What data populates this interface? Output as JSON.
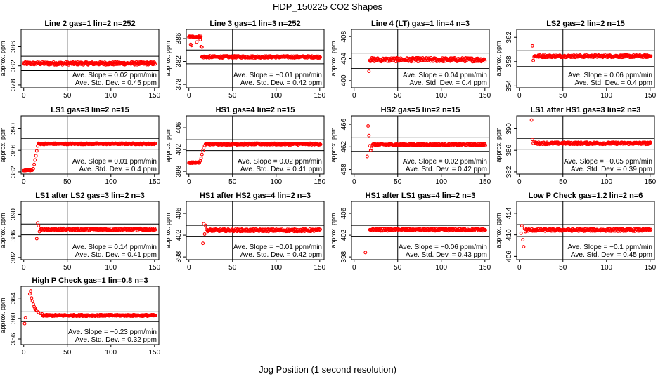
{
  "figure": {
    "title": "HDP_150225  CO2 Shapes",
    "xlabel": "Jog Position (1 second resolution)"
  },
  "chart_data": [
    {
      "type": "scatter",
      "title": "Line 2 gas=1 lin=2 n=252",
      "ylabel": "approx. ppm",
      "xlim": [
        -3,
        155
      ],
      "ylim": [
        377.4,
        389.6
      ],
      "xticks": [
        0,
        50,
        100,
        150
      ],
      "yticks": [
        378,
        382,
        386
      ],
      "hlines": [
        384,
        381
      ],
      "vline": 50,
      "color": "#ff0000",
      "annotation": [
        "Ave. Slope =  0.02  ppm/min",
        "Ave. Std. Dev. =  0.45  ppm"
      ],
      "series": [
        {
          "shape": "flat",
          "x_start": 0,
          "x_end": 151,
          "level": 382.5,
          "noise": 0.3
        }
      ]
    },
    {
      "type": "scatter",
      "title": "Line 3 gas=1 lin=3 n=252",
      "ylabel": "approx. ppm",
      "xlim": [
        -3,
        155
      ],
      "ylim": [
        377.4,
        387.6
      ],
      "xticks": [
        0,
        50,
        100,
        150
      ],
      "yticks": [
        378,
        382,
        386
      ],
      "hlines": [
        384,
        381.6
      ],
      "vline": 50,
      "color": "#ff0000",
      "annotation": [
        "Ave. Slope =  −0.01  ppm/min",
        "Ave. Std. Dev. =  0.42  ppm"
      ],
      "series": [
        {
          "shape": "flat",
          "x_start": 0,
          "x_end": 14,
          "level": 386.3,
          "noise": 0.15
        },
        {
          "points": [
            [
              2,
              385
            ],
            [
              3,
              384.8
            ],
            [
              9,
              385.4
            ],
            [
              13,
              385.8
            ],
            [
              14,
              384.6
            ],
            [
              15,
              384.5
            ]
          ]
        },
        {
          "shape": "flat",
          "x_start": 15,
          "x_end": 151,
          "level": 382.8,
          "noise": 0.18
        }
      ]
    },
    {
      "type": "scatter",
      "title": "Line 4 (LT) gas=1 lin=4 n=3",
      "ylabel": "approx. ppm",
      "xlim": [
        -3,
        155
      ],
      "ylim": [
        398.7,
        409.3
      ],
      "xticks": [
        0,
        50,
        100,
        150
      ],
      "yticks": [
        400,
        404,
        408
      ],
      "hlines": [
        405,
        402.2
      ],
      "vline": 50,
      "color": "#ff0000",
      "annotation": [
        "Ave. Slope =  0.04  ppm/min",
        "Ave. Std. Dev. =  0.4  ppm"
      ],
      "series": [
        {
          "points": [
            [
              17,
              401.7
            ]
          ]
        },
        {
          "shape": "flat",
          "x_start": 18,
          "x_end": 150,
          "level": 403.8,
          "noise": 0.35
        }
      ]
    },
    {
      "type": "scatter",
      "title": "LS2 gas=2 lin=2 n=15",
      "ylabel": "approx. ppm",
      "xlim": [
        -3,
        155
      ],
      "ylim": [
        353.7,
        363.3
      ],
      "xticks": [
        0,
        50,
        100,
        150
      ],
      "yticks": [
        354,
        358,
        362
      ],
      "hlines": [
        359.8,
        357.2
      ],
      "vline": 50,
      "color": "#ff0000",
      "annotation": [
        "Ave. Slope =  0.06  ppm/min",
        "Ave. Std. Dev. =  0.4  ppm"
      ],
      "series": [
        {
          "points": [
            [
              15,
              360.6
            ],
            [
              16,
              358.2
            ]
          ]
        },
        {
          "shape": "flat",
          "x_start": 17,
          "x_end": 151,
          "level": 358.9,
          "noise": 0.2
        }
      ]
    },
    {
      "type": "scatter",
      "title": "LS1 gas=3 lin=2 n=15",
      "ylabel": "approx. ppm",
      "xlim": [
        -3,
        155
      ],
      "ylim": [
        381.6,
        392.4
      ],
      "xticks": [
        0,
        50,
        100,
        150
      ],
      "yticks": [
        382,
        386,
        390
      ],
      "hlines": [
        388.2,
        386.2
      ],
      "vline": 50,
      "color": "#ff0000",
      "annotation": [
        "Ave. Slope =  0.01  ppm/min",
        "Ave. Std. Dev. =  0.4  ppm"
      ],
      "series": [
        {
          "shape": "flat",
          "x_start": 0,
          "x_end": 10,
          "level": 382.3,
          "noise": 0.08
        },
        {
          "points": [
            [
              11,
              382.6
            ],
            [
              12,
              383.4
            ],
            [
              13,
              384.2
            ],
            [
              14,
              385
            ],
            [
              15,
              385.9
            ],
            [
              16,
              386.8
            ]
          ]
        },
        {
          "shape": "flat",
          "x_start": 17,
          "x_end": 151,
          "level": 387.2,
          "noise": 0.12
        }
      ]
    },
    {
      "type": "scatter",
      "title": "HS1 gas=4 lin=2 n=15",
      "ylabel": "approx. ppm",
      "xlim": [
        -3,
        155
      ],
      "ylim": [
        397.5,
        408.2
      ],
      "xticks": [
        0,
        50,
        100,
        150
      ],
      "yticks": [
        398,
        402,
        406
      ],
      "hlines": [
        403.8,
        401.8
      ],
      "vline": 50,
      "color": "#ff0000",
      "annotation": [
        "Ave. Slope =  0.02  ppm/min",
        "Ave. Std. Dev. =  0.41  ppm"
      ],
      "series": [
        {
          "shape": "flat",
          "x_start": 0,
          "x_end": 12,
          "level": 399.6,
          "noise": 0.1
        },
        {
          "points": [
            [
              13,
              399.9
            ],
            [
              14,
              400.4
            ],
            [
              15,
              401.1
            ],
            [
              16,
              401.8
            ],
            [
              17,
              402.3
            ],
            [
              18,
              402.7
            ]
          ]
        },
        {
          "shape": "flat",
          "x_start": 19,
          "x_end": 151,
          "level": 403,
          "noise": 0.15
        }
      ]
    },
    {
      "type": "scatter",
      "title": "HS2 gas=5 lin=2 n=15",
      "ylabel": "approx. ppm",
      "xlim": [
        -3,
        155
      ],
      "ylim": [
        457.2,
        467.5
      ],
      "xticks": [
        0,
        50,
        100,
        150
      ],
      "yticks": [
        458,
        462,
        466
      ],
      "hlines": [
        463.6,
        461.2
      ],
      "vline": 50,
      "color": "#ff0000",
      "annotation": [
        "Ave. Slope =  0.02  ppm/min",
        "Ave. Std. Dev. =  0.42  ppm"
      ],
      "series": [
        {
          "points": [
            [
              15,
              460.3
            ],
            [
              16,
              465.7
            ],
            [
              17,
              464
            ],
            [
              18,
              462.2
            ],
            [
              19,
              461.4
            ],
            [
              20,
              461.7
            ]
          ]
        },
        {
          "shape": "flat",
          "x_start": 21,
          "x_end": 151,
          "level": 462.4,
          "noise": 0.15
        }
      ]
    },
    {
      "type": "scatter",
      "title": "LS1 after HS1 gas=3 lin=2 n=3",
      "ylabel": "approx. ppm",
      "xlim": [
        -3,
        155
      ],
      "ylim": [
        381.6,
        392.4
      ],
      "xticks": [
        0,
        50,
        100,
        150
      ],
      "yticks": [
        382,
        386,
        390
      ],
      "hlines": [
        388.2,
        386.2
      ],
      "vline": 50,
      "color": "#ff0000",
      "annotation": [
        "Ave. Slope =  −0.05  ppm/min",
        "Ave. Std. Dev. =  0.39  ppm"
      ],
      "series": [
        {
          "points": [
            [
              14,
              391.6
            ],
            [
              15,
              388
            ],
            [
              16,
              387.3
            ],
            [
              17,
              387.6
            ]
          ]
        },
        {
          "shape": "flat",
          "x_start": 18,
          "x_end": 151,
          "level": 387.3,
          "noise": 0.2
        }
      ]
    },
    {
      "type": "scatter",
      "title": "LS1 after LS2 gas=3 lin=2 n=3",
      "ylabel": "approx. ppm",
      "xlim": [
        -3,
        155
      ],
      "ylim": [
        381.6,
        392.4
      ],
      "xticks": [
        0,
        50,
        100,
        150
      ],
      "yticks": [
        382,
        386,
        390
      ],
      "hlines": [
        388.2,
        386.2
      ],
      "vline": 50,
      "color": "#ff0000",
      "annotation": [
        "Ave. Slope =  0.14  ppm/min",
        "Ave. Std. Dev. =  0.41  ppm"
      ],
      "series": [
        {
          "points": [
            [
              15,
              385.5
            ],
            [
              16,
              388.4
            ],
            [
              17,
              387.9
            ],
            [
              18,
              386.8
            ],
            [
              19,
              387.2
            ]
          ]
        },
        {
          "shape": "flat",
          "x_start": 20,
          "x_end": 151,
          "level": 387.2,
          "noise": 0.22
        }
      ]
    },
    {
      "type": "scatter",
      "title": "HS1 after HS2 gas=4 lin=2 n=3",
      "ylabel": "approx. ppm",
      "xlim": [
        -3,
        155
      ],
      "ylim": [
        397.5,
        408.2
      ],
      "xticks": [
        0,
        50,
        100,
        150
      ],
      "yticks": [
        398,
        402,
        406
      ],
      "hlines": [
        403.8,
        401.8
      ],
      "vline": 50,
      "color": "#ff0000",
      "annotation": [
        "Ave. Slope =  −0.01  ppm/min",
        "Ave. Std. Dev. =  0.42  ppm"
      ],
      "series": [
        {
          "points": [
            [
              16,
              400.5
            ],
            [
              17,
              404.1
            ],
            [
              18,
              402.2
            ],
            [
              19,
              403.8
            ],
            [
              20,
              403.1
            ]
          ]
        },
        {
          "shape": "flat",
          "x_start": 21,
          "x_end": 151,
          "level": 402.9,
          "noise": 0.22
        }
      ]
    },
    {
      "type": "scatter",
      "title": "HS1 after LS1 gas=4 lin=2 n=3",
      "ylabel": "approx. ppm",
      "xlim": [
        -3,
        155
      ],
      "ylim": [
        397.5,
        408.2
      ],
      "xticks": [
        0,
        50,
        100,
        150
      ],
      "yticks": [
        398,
        402,
        406
      ],
      "hlines": [
        403.8,
        401.8
      ],
      "vline": 50,
      "color": "#ff0000",
      "annotation": [
        "Ave. Slope =  −0.06  ppm/min",
        "Ave. Std. Dev. =  0.43  ppm"
      ],
      "series": [
        {
          "points": [
            [
              13,
              398.8
            ]
          ]
        },
        {
          "shape": "flat",
          "x_start": 18,
          "x_end": 151,
          "level": 403,
          "noise": 0.2
        }
      ]
    },
    {
      "type": "scatter",
      "title": "Low P Check gas=1.2 lin=2 n=6",
      "ylabel": "approx. ppm",
      "xlim": [
        -3,
        155
      ],
      "ylim": [
        405.4,
        416.2
      ],
      "xticks": [
        0,
        50,
        100,
        150
      ],
      "yticks": [
        406,
        410,
        414
      ],
      "hlines": [
        411.9,
        409.7
      ],
      "vline": 50,
      "color": "#ff0000",
      "annotation": [
        "Ave. Slope =  −0.1  ppm/min",
        "Ave. Std. Dev. =  0.45  ppm"
      ],
      "series": [
        {
          "points": [
            [
              2,
              410.3
            ],
            [
              3,
              411.7
            ],
            [
              4,
              409.1
            ],
            [
              5,
              407.8
            ],
            [
              6,
              411.2
            ],
            [
              7,
              410.6
            ]
          ]
        },
        {
          "shape": "flat",
          "x_start": 8,
          "x_end": 151,
          "level": 410.9,
          "noise": 0.22
        }
      ]
    },
    {
      "type": "scatter",
      "title": "High P Check gas=1 lin=0.8 n=3",
      "ylabel": "approx. ppm",
      "xlim": [
        -3,
        155
      ],
      "ylim": [
        354.9,
        366.3
      ],
      "xticks": [
        0,
        50,
        100,
        150
      ],
      "yticks": [
        356,
        360,
        364
      ],
      "hlines": [
        361.3,
        359.4
      ],
      "vline": 50,
      "color": "#ff0000",
      "annotation": [
        "Ave. Slope =  −0.23  ppm/min",
        "Ave. Std. Dev. =  0.32  ppm"
      ],
      "series": [
        {
          "points": [
            [
              1,
              359
            ],
            [
              2,
              360.2
            ],
            [
              7,
              364.8
            ],
            [
              8,
              365.4
            ],
            [
              9,
              364
            ],
            [
              10,
              363.4
            ],
            [
              11,
              362.8
            ],
            [
              12,
              362.3
            ],
            [
              13,
              362
            ],
            [
              14,
              361.7
            ],
            [
              15,
              361.5
            ],
            [
              17,
              361.2
            ],
            [
              19,
              361
            ],
            [
              21,
              360.9
            ]
          ]
        },
        {
          "shape": "flat",
          "x_start": 22,
          "x_end": 151,
          "level": 360.6,
          "noise": 0.15
        }
      ]
    }
  ]
}
